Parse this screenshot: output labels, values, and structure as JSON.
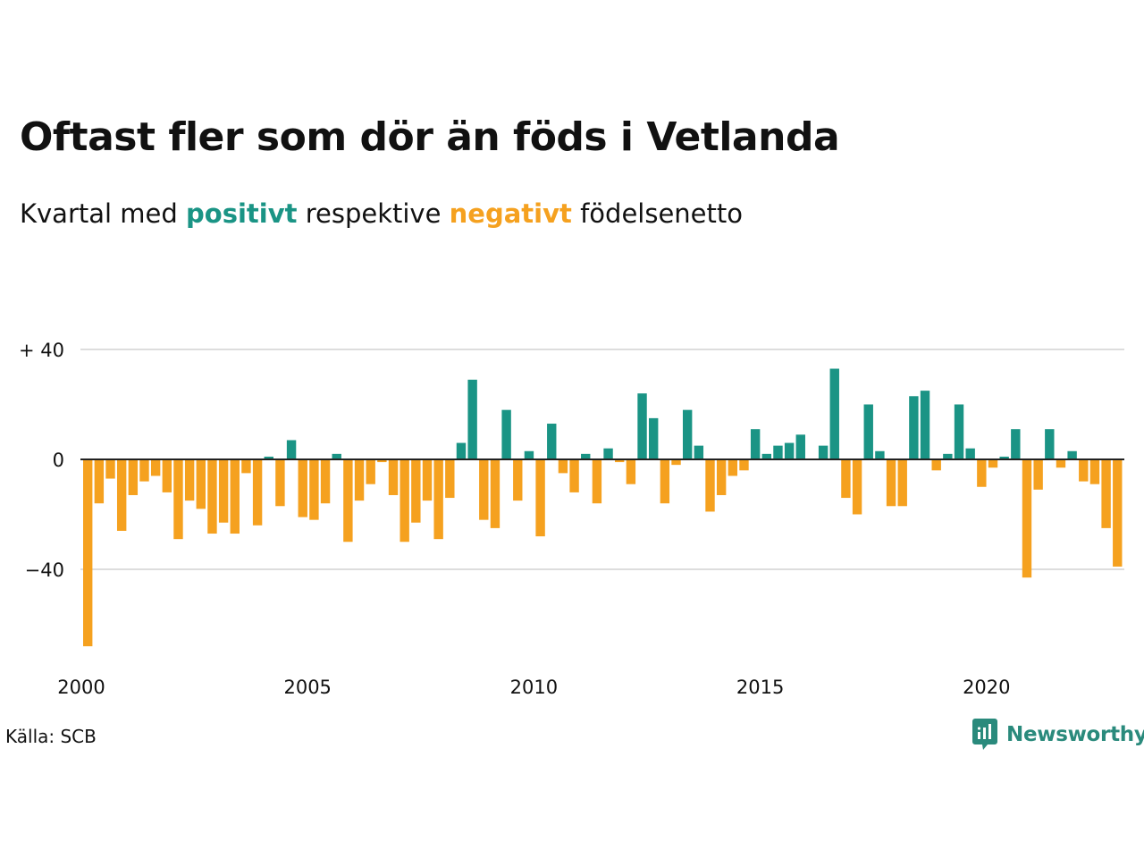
{
  "title": "Oftast fler som dör än föds i Vetlanda",
  "subtitle": {
    "prefix": "Kvartal med ",
    "positive_word": "positivt",
    "middle": " respektive ",
    "negative_word": "negativt",
    "suffix": " födelsenetto"
  },
  "colors": {
    "positive": "#1a9485",
    "negative": "#f5a11f",
    "grid": "#dddddd",
    "axis": "#222222",
    "brand": "#2a8a7c"
  },
  "source": "Källa: SCB",
  "brand": {
    "name": "Newsworthy",
    "icon": "newsworthy-logo-icon"
  },
  "chart_data": {
    "type": "bar",
    "title": "Oftast fler som dör än föds i Vetlanda",
    "subtitle": "Kvartal med positivt respektive negativt födelsenetto",
    "x_start": "2000 Q1",
    "x_labels": [
      "2000",
      "2005",
      "2010",
      "2015",
      "2020"
    ],
    "y_ticks": [
      {
        "value": 40,
        "label": "+ 40"
      },
      {
        "value": 0,
        "label": "0"
      },
      {
        "value": -40,
        "label": "−40"
      }
    ],
    "ylim": [
      -70,
      40
    ],
    "grid": true,
    "values": [
      -68,
      -16,
      -7,
      -26,
      -13,
      -8,
      -6,
      -12,
      -29,
      -15,
      -18,
      -27,
      -23,
      -27,
      -5,
      -24,
      1,
      -17,
      7,
      -21,
      -22,
      -16,
      2,
      -30,
      -15,
      -9,
      -1,
      -13,
      -30,
      -23,
      -15,
      -29,
      -14,
      6,
      29,
      -22,
      -25,
      18,
      -15,
      3,
      -28,
      13,
      -5,
      -12,
      2,
      -16,
      4,
      -1,
      -9,
      24,
      15,
      -16,
      -2,
      18,
      5,
      -19,
      -13,
      -6,
      -4,
      11,
      2,
      5,
      6,
      9,
      0,
      5,
      33,
      -14,
      -20,
      20,
      3,
      -17,
      -17,
      23,
      25,
      -4,
      2,
      20,
      4,
      -10,
      -3,
      1,
      11,
      -43,
      -11,
      11,
      -3,
      3,
      -8,
      -9,
      -25,
      -39
    ]
  }
}
